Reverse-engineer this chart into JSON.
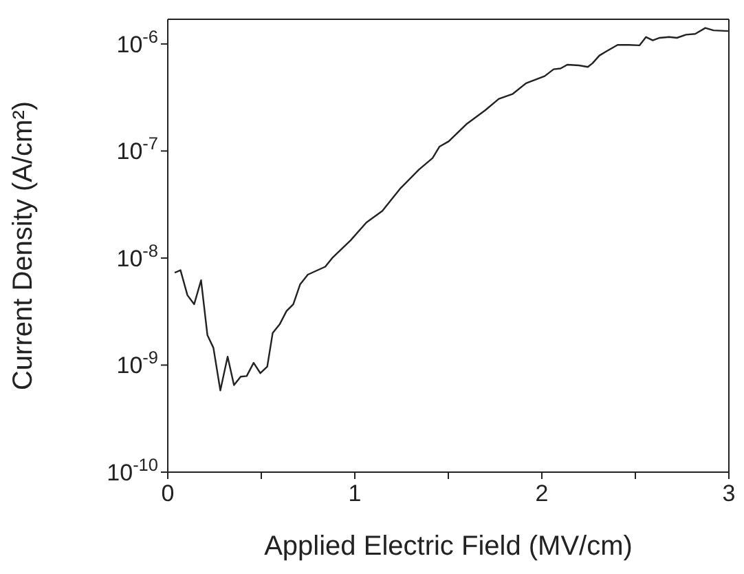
{
  "chart_data": {
    "type": "line",
    "xlabel": "Applied Electric Field (MV/cm)",
    "ylabel": "Current Density (A/cm²)",
    "log": "y",
    "grid": false,
    "legend": false,
    "marker": "none",
    "line_style": "solid",
    "xlim": [
      0,
      3
    ],
    "xticks": [
      0,
      {
        "value": 0.5,
        "label": null
      },
      1,
      {
        "value": 1.5,
        "label": null
      },
      2,
      {
        "value": 2.5,
        "label": null
      },
      3
    ],
    "ylim": [
      1e-10,
      1.7e-06
    ],
    "yticks": [
      {
        "value": 1e-10,
        "label": "10$^{-10}$"
      },
      {
        "value": 1e-09,
        "label": "10$^{-9}$"
      },
      {
        "value": 1e-08,
        "label": "10$^{-8}$"
      },
      {
        "value": 1e-07,
        "label": "10$^{-7}$"
      },
      {
        "value": 1e-06,
        "label": "10$^{-6}$"
      }
    ],
    "x": [
      0.037,
      0.068,
      0.105,
      0.141,
      0.178,
      0.212,
      0.244,
      0.281,
      0.32,
      0.354,
      0.39,
      0.422,
      0.459,
      0.495,
      0.532,
      0.561,
      0.598,
      0.635,
      0.671,
      0.708,
      0.749,
      0.842,
      0.879,
      0.977,
      1.062,
      1.147,
      1.245,
      1.343,
      1.416,
      1.453,
      1.502,
      1.6,
      1.697,
      1.77,
      1.843,
      1.916,
      2.015,
      2.063,
      2.1,
      2.136,
      2.198,
      2.246,
      2.271,
      2.308,
      2.344,
      2.405,
      2.466,
      2.522,
      2.557,
      2.593,
      2.63,
      2.681,
      2.722,
      2.771,
      2.82,
      2.874,
      2.918,
      2.996
    ],
    "series": [
      {
        "color": "#222222",
        "values": [
          7.3e-09,
          7.7e-09,
          4.5e-09,
          3.7e-09,
          6.2e-09,
          1.9e-09,
          1.45e-09,
          5.8e-10,
          1.2e-09,
          6.5e-10,
          7.8e-10,
          7.9e-10,
          1.05e-09,
          8.4e-10,
          9.7e-10,
          2e-09,
          2.4e-09,
          3.2e-09,
          3.7e-09,
          5.7e-09,
          7e-09,
          8.3e-09,
          1e-08,
          1.46e-08,
          2.15e-08,
          2.75e-08,
          4.5e-08,
          6.7e-08,
          8.6e-08,
          1.1e-07,
          1.23e-07,
          1.8e-07,
          2.4e-07,
          3.07e-07,
          3.4e-07,
          4.3e-07,
          5e-07,
          5.8e-07,
          5.9e-07,
          6.4e-07,
          6.3e-07,
          6.1e-07,
          6.6e-07,
          7.8e-07,
          8.5e-07,
          9.8e-07,
          9.8e-07,
          9.7e-07,
          1.16e-06,
          1.08e-06,
          1.14e-06,
          1.16e-06,
          1.14e-06,
          1.22e-06,
          1.24e-06,
          1.41e-06,
          1.34e-06,
          1.32e-06
        ]
      }
    ]
  }
}
